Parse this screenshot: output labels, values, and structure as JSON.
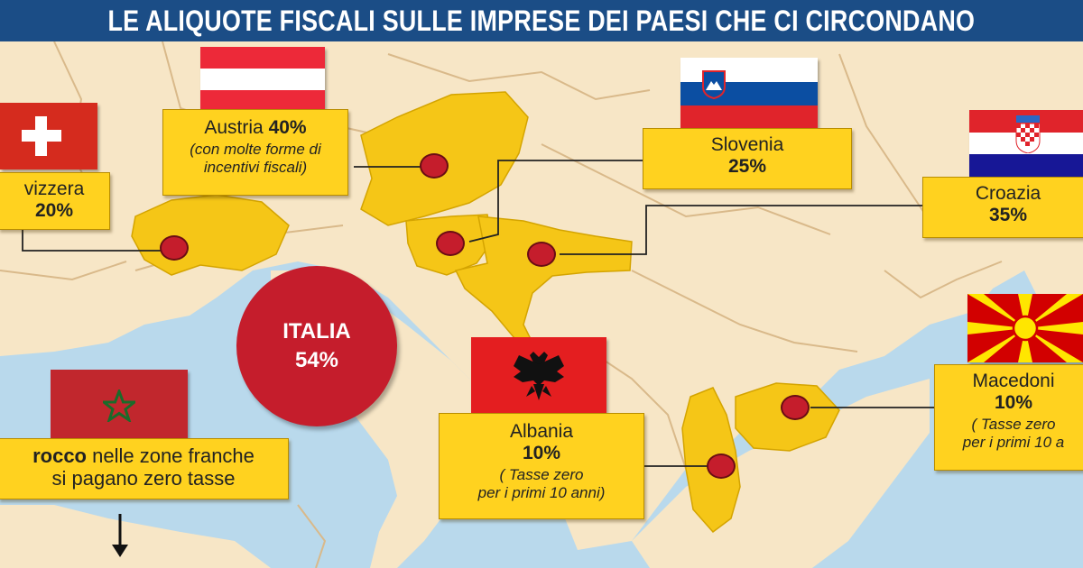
{
  "title": "LE ALIQUOTE FISCALI SULLE IMPRESE DEI PAESI CHE CI CIRCONDANO",
  "colors": {
    "header": "#1b4d86",
    "label_box": "#ffd21f",
    "highlight_country": "#f5c617",
    "land": "#f7e6c6",
    "sea": "#b9d9ec",
    "marker": "#c51d2c"
  },
  "italia": {
    "name": "ITALIA",
    "rate": "54%"
  },
  "countries": {
    "svizzera": {
      "name": "vizzera",
      "rate": "20%",
      "flag": "swiss-flag"
    },
    "austria": {
      "name": "Austria",
      "rate": "40%",
      "note": "(con molte forme di incentivi fiscali)",
      "flag": "austria-flag"
    },
    "slovenia": {
      "name": "Slovenia",
      "rate": "25%",
      "flag": "slovenia-flag"
    },
    "croazia": {
      "name": "Croazia",
      "rate": "35%",
      "flag": "croatia-flag"
    },
    "macedonia": {
      "name": "Macedoni",
      "rate": "10%",
      "note1": "( Tasse zero",
      "note2": "per i primi 10 a",
      "flag": "macedonia-flag"
    },
    "albania": {
      "name": "Albania",
      "rate": "10%",
      "note1": "( Tasse zero",
      "note2": "per i primi 10 anni)",
      "flag": "albania-flag"
    },
    "marocco": {
      "name": "rocco",
      "line1_rest": " nelle zone franche",
      "line2": "si pagano zero tasse",
      "flag": "morocco-flag"
    }
  }
}
